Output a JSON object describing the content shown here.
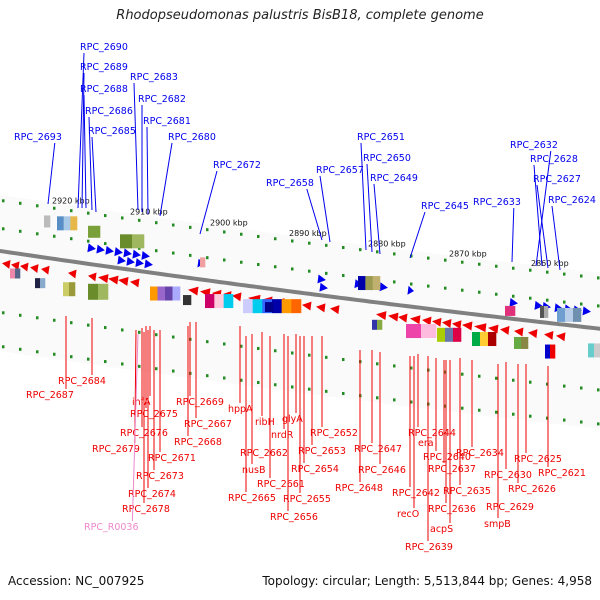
{
  "title": "Rhodopseudomonas palustris BisB18, complete genome",
  "footer": {
    "accession": "Accession: NC_007925",
    "summary": "Topology: circular; Length: 5,513,844 bp; Genes: 4,958"
  },
  "colors": {
    "forward": "#0000ee",
    "reverse": "#ee0000",
    "rna": "#ee88cc",
    "backbone": "#808080",
    "tick": "#228b22"
  },
  "scale": [
    {
      "label": "2920 kbp"
    },
    {
      "label": "2910 kbp"
    },
    {
      "label": "2900 kbp"
    },
    {
      "label": "2890 kbp"
    },
    {
      "label": "2880 kbp"
    },
    {
      "label": "2870 kbp"
    },
    {
      "label": "2860 kbp"
    }
  ],
  "genes_top": [
    {
      "label": "RPC_2690"
    },
    {
      "label": "RPC_2689"
    },
    {
      "label": "RPC_2688"
    },
    {
      "label": "RPC_2683"
    },
    {
      "label": "RPC_2686"
    },
    {
      "label": "RPC_2682"
    },
    {
      "label": "RPC_2685"
    },
    {
      "label": "RPC_2681"
    },
    {
      "label": "RPC_2693"
    },
    {
      "label": "RPC_2680"
    },
    {
      "label": "RPC_2672"
    },
    {
      "label": "RPC_2658"
    },
    {
      "label": "RPC_2657"
    },
    {
      "label": "RPC_2651"
    },
    {
      "label": "RPC_2650"
    },
    {
      "label": "RPC_2649"
    },
    {
      "label": "RPC_2645"
    },
    {
      "label": "RPC_2633"
    },
    {
      "label": "RPC_2632"
    },
    {
      "label": "RPC_2628"
    },
    {
      "label": "RPC_2627"
    },
    {
      "label": "RPC_2624"
    }
  ],
  "genes_bottom": [
    {
      "label": "RPC_2684",
      "kind": "reverse"
    },
    {
      "label": "RPC_2687",
      "kind": "reverse"
    },
    {
      "label": "ihfA",
      "kind": "reverse"
    },
    {
      "label": "RPC_2675",
      "kind": "reverse"
    },
    {
      "label": "RPC_2669",
      "kind": "reverse"
    },
    {
      "label": "RPC_2676",
      "kind": "reverse"
    },
    {
      "label": "RPC_2667",
      "kind": "reverse"
    },
    {
      "label": "hppA",
      "kind": "reverse"
    },
    {
      "label": "RPC_2679",
      "kind": "reverse"
    },
    {
      "label": "RPC_2668",
      "kind": "reverse"
    },
    {
      "label": "RPC_2671",
      "kind": "reverse"
    },
    {
      "label": "RPC_2673",
      "kind": "reverse"
    },
    {
      "label": "RPC_2674",
      "kind": "reverse"
    },
    {
      "label": "RPC_2678",
      "kind": "reverse"
    },
    {
      "label": "RPC_R0036",
      "kind": "rna"
    },
    {
      "label": "ribH",
      "kind": "reverse"
    },
    {
      "label": "glyA",
      "kind": "reverse"
    },
    {
      "label": "nrdR",
      "kind": "reverse"
    },
    {
      "label": "RPC_2652",
      "kind": "reverse"
    },
    {
      "label": "RPC_2662",
      "kind": "reverse"
    },
    {
      "label": "RPC_2653",
      "kind": "reverse"
    },
    {
      "label": "nusB",
      "kind": "reverse"
    },
    {
      "label": "RPC_2654",
      "kind": "reverse"
    },
    {
      "label": "RPC_2661",
      "kind": "reverse"
    },
    {
      "label": "RPC_2665",
      "kind": "reverse"
    },
    {
      "label": "RPC_2655",
      "kind": "reverse"
    },
    {
      "label": "RPC_2656",
      "kind": "reverse"
    },
    {
      "label": "RPC_2644",
      "kind": "reverse"
    },
    {
      "label": "RPC_2647",
      "kind": "reverse"
    },
    {
      "label": "era",
      "kind": "reverse"
    },
    {
      "label": "RPC_2646",
      "kind": "reverse"
    },
    {
      "label": "RPC_2640",
      "kind": "reverse"
    },
    {
      "label": "RPC_2634",
      "kind": "reverse"
    },
    {
      "label": "RPC_2637",
      "kind": "reverse"
    },
    {
      "label": "RPC_2648",
      "kind": "reverse"
    },
    {
      "label": "RPC_2642",
      "kind": "reverse"
    },
    {
      "label": "RPC_2635",
      "kind": "reverse"
    },
    {
      "label": "recO",
      "kind": "reverse"
    },
    {
      "label": "RPC_2636",
      "kind": "reverse"
    },
    {
      "label": "acpS",
      "kind": "reverse"
    },
    {
      "label": "RPC_2639",
      "kind": "reverse"
    },
    {
      "label": "RPC_2625",
      "kind": "reverse"
    },
    {
      "label": "RPC_2630",
      "kind": "reverse"
    },
    {
      "label": "RPC_2621",
      "kind": "reverse"
    },
    {
      "label": "RPC_2626",
      "kind": "reverse"
    },
    {
      "label": "RPC_2629",
      "kind": "reverse"
    },
    {
      "label": "smpB",
      "kind": "reverse"
    }
  ]
}
